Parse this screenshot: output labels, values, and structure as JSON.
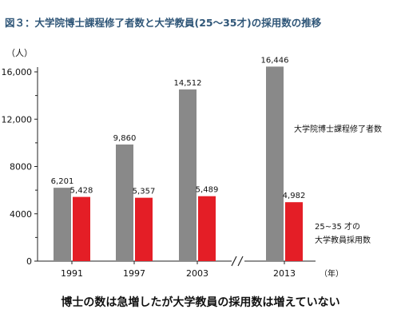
{
  "page": {
    "title": "図３：大学院博士課程修了者数と大学教員(25～35才)の採用数の推移",
    "caption": "博士の数は急増したが大学教員の採用数は増えていない"
  },
  "chart_data": {
    "type": "bar",
    "categories": [
      "1991",
      "1997",
      "2003",
      "2013"
    ],
    "series": [
      {
        "name": "大学院博士課程修了者数",
        "color": "#898989",
        "values": [
          6201,
          9860,
          14512,
          16446
        ],
        "labels": [
          "6,201",
          "9,860",
          "14,512",
          "16,446"
        ]
      },
      {
        "name": "25~35 才の大学教員採用数",
        "color": "#e41e26",
        "values": [
          5428,
          5357,
          5489,
          4982
        ],
        "labels": [
          "5,428",
          "5,357",
          "5,489",
          "4,982"
        ]
      }
    ],
    "legend_labels": [
      "大学院博士課程修了者数",
      "25~35 才の",
      "大学教員採用数"
    ],
    "ylim": [
      0,
      16000
    ],
    "yticks": [
      0,
      4000,
      8000,
      12000,
      16000
    ],
    "ytick_labels": [
      "0",
      "4000",
      "8000",
      "12,000",
      "16,000"
    ],
    "ylabel": "（人）",
    "xlabel": "（年）",
    "axis_break": "//",
    "grid": false
  }
}
